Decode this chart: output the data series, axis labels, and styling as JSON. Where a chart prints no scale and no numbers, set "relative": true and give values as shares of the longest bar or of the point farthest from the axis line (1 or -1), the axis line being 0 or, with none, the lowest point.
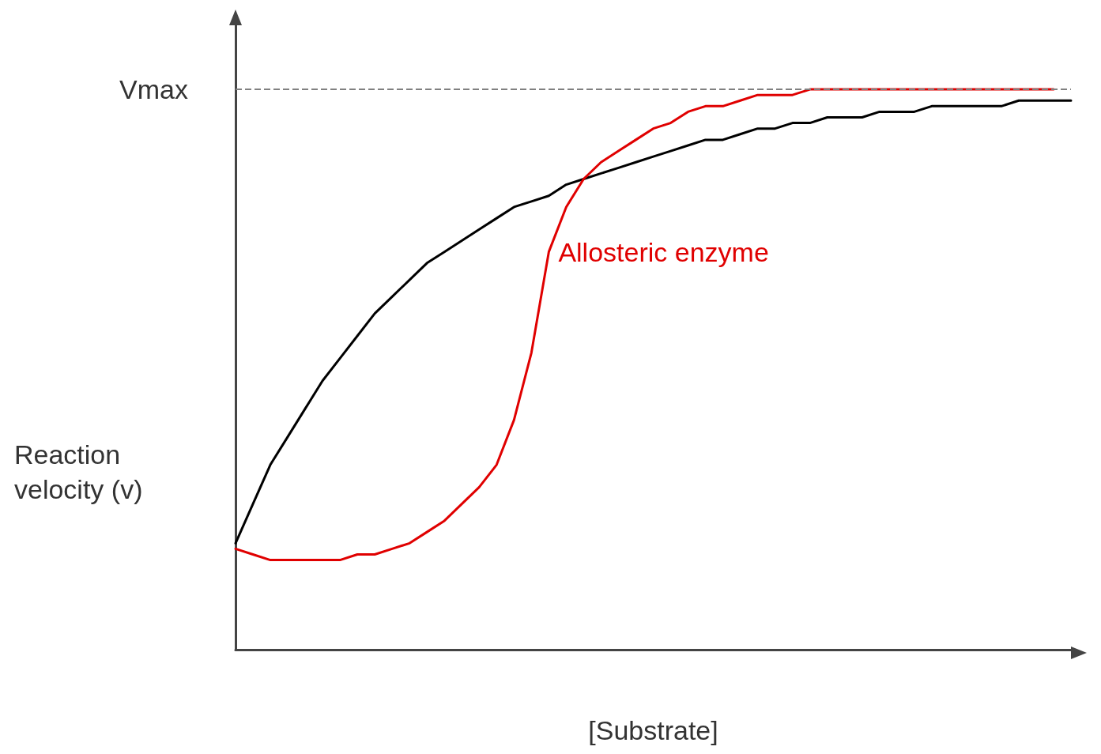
{
  "chart_data": {
    "type": "line",
    "relative": true,
    "xlabel": "[Substrate]",
    "ylabel": "Reaction velocity (v)",
    "marker": "none",
    "categories": [
      null,
      null,
      null,
      null,
      null,
      null,
      null,
      null,
      null,
      null,
      null,
      null,
      null,
      null,
      null,
      null,
      null,
      null,
      null,
      null,
      null,
      null,
      null,
      null,
      null,
      null,
      null,
      null,
      null,
      null,
      null,
      null,
      null,
      null,
      null,
      null,
      null,
      null,
      null,
      null,
      null,
      null,
      null,
      null,
      null,
      null,
      null,
      null,
      null
    ],
    "series": [
      {
        "color": "#000000",
        "values": [
          0.19,
          0.26,
          0.33,
          0.38,
          0.43,
          0.48,
          0.52,
          0.56,
          0.6,
          0.63,
          0.66,
          0.69,
          0.71,
          0.73,
          0.75,
          0.77,
          0.79,
          0.8,
          0.81,
          0.83,
          0.84,
          0.85,
          0.86,
          0.87,
          0.88,
          0.89,
          0.9,
          0.91,
          0.91,
          0.92,
          0.93,
          0.93,
          0.94,
          0.94,
          0.95,
          0.95,
          0.95,
          0.96,
          0.96,
          0.96,
          0.97,
          0.97,
          0.97,
          0.97,
          0.97,
          0.98,
          0.98,
          0.98,
          0.98
        ]
      },
      {
        "name": "Allosteric enzyme",
        "color": "#e00000",
        "values": [
          0.18,
          0.17,
          0.16,
          0.16,
          0.16,
          0.16,
          0.16,
          0.17,
          0.17,
          0.18,
          0.19,
          0.21,
          0.23,
          0.26,
          0.29,
          0.33,
          0.41,
          0.53,
          0.71,
          0.79,
          0.84,
          0.87,
          0.89,
          0.91,
          0.93,
          0.94,
          0.96,
          0.97,
          0.97,
          0.98,
          0.99,
          0.99,
          0.99,
          1.0,
          1.0,
          1.0,
          1.0,
          1.0,
          1.0,
          1.0,
          1.0,
          1.0,
          1.0,
          1.0,
          1.0,
          1.0,
          1.0,
          1.0,
          null
        ]
      }
    ],
    "ref_lines": [
      {
        "axis": "y",
        "value": 1.0,
        "label": "Vmax",
        "color": "#808080",
        "line_style": "dashed"
      }
    ]
  }
}
